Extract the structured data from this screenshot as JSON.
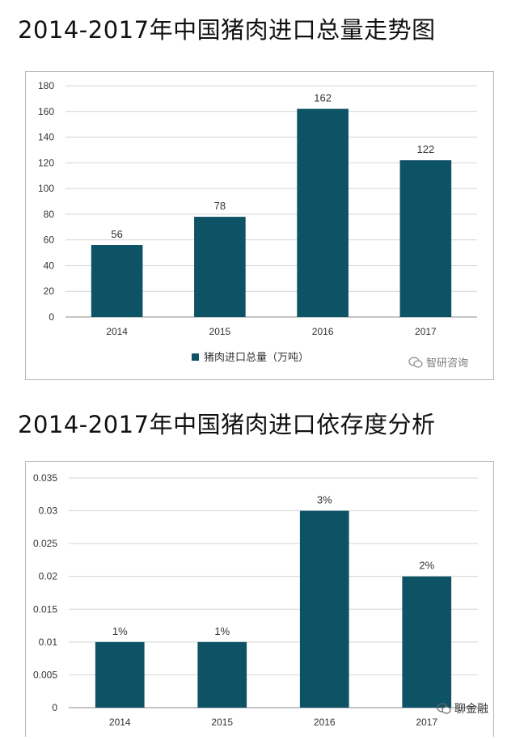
{
  "headings": {
    "chart1": "2014-2017年中国猪肉进口总量走势图",
    "chart2": "2014-2017年中国猪肉进口依存度分析"
  },
  "watermarks": {
    "chart1": "智研咨询",
    "chart2": "聊金融"
  },
  "colors": {
    "bar": "#0e5266",
    "grid": "#d4d4d4",
    "axis": "#888888",
    "text": "#333333"
  },
  "chart_data": [
    {
      "type": "bar",
      "title": "2014-2017年中国猪肉进口总量走势图",
      "categories": [
        "2014",
        "2015",
        "2016",
        "2017"
      ],
      "series": [
        {
          "name": "猪肉进口总量（万吨）",
          "values": [
            56,
            78,
            162,
            122
          ]
        }
      ],
      "data_labels": [
        "56",
        "78",
        "162",
        "122"
      ],
      "ylim": [
        0,
        180
      ],
      "yticks": [
        "0",
        "20",
        "40",
        "60",
        "80",
        "100",
        "120",
        "140",
        "160",
        "180"
      ],
      "ytick_values": [
        0,
        20,
        40,
        60,
        80,
        100,
        120,
        140,
        160,
        180
      ],
      "grid": true,
      "legend_position": "bottom"
    },
    {
      "type": "bar",
      "title": "2014-2017年中国猪肉进口依存度分析",
      "categories": [
        "2014",
        "2015",
        "2016",
        "2017"
      ],
      "series": [
        {
          "values": [
            0.01,
            0.01,
            0.03,
            0.02
          ]
        }
      ],
      "data_labels": [
        "1%",
        "1%",
        "3%",
        "2%"
      ],
      "ylim": [
        0,
        0.035
      ],
      "yticks": [
        "0",
        "0.005",
        "0.01",
        "0.015",
        "0.02",
        "0.025",
        "0.03",
        "0.035"
      ],
      "ytick_values": [
        0,
        0.005,
        0.01,
        0.015,
        0.02,
        0.025,
        0.03,
        0.035
      ],
      "grid": true,
      "legend_position": "none"
    }
  ]
}
